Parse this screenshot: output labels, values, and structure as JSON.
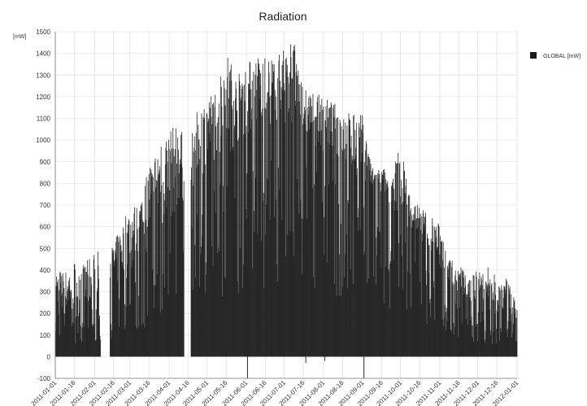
{
  "chart_data": {
    "type": "bar",
    "title": "Radiation",
    "ylabel": "[mW]",
    "xlabel": "",
    "ylim": [
      -100,
      1500
    ],
    "yticks": [
      -100,
      0,
      100,
      200,
      300,
      400,
      500,
      600,
      700,
      800,
      900,
      1000,
      1100,
      1200,
      1300,
      1400,
      1500
    ],
    "xlim": [
      "2011-01-01",
      "2012-01-01"
    ],
    "xtick_labels": [
      "2011-01-01",
      "2011-01-16",
      "2011-02-01",
      "2011-02-16",
      "2011-03-01",
      "2011-03-16",
      "2011-04-01",
      "2011-04-16",
      "2011-05-01",
      "2011-05-16",
      "2011-06-01",
      "2011-06-16",
      "2011-07-01",
      "2011-07-16",
      "2011-08-01",
      "2011-08-16",
      "2011-09-01",
      "2011-09-16",
      "2011-10-01",
      "2011-10-16",
      "2011-11-01",
      "2011-11-16",
      "2011-12-01",
      "2011-12-16",
      "2012-01-01"
    ],
    "grid": true,
    "legend_position": "top-right",
    "colors": {
      "series": "#1a1a1a",
      "grid": "#d9d9d9",
      "axis": "#777777"
    },
    "series": [
      {
        "name": "GLOBAL [mW]",
        "daily_peak": [
          {
            "x": "2011-01-01",
            "y": 420
          },
          {
            "x": "2011-01-08",
            "y": 390
          },
          {
            "x": "2011-01-16",
            "y": 450
          },
          {
            "x": "2011-01-24",
            "y": 430
          },
          {
            "x": "2011-02-01",
            "y": 490
          },
          {
            "x": "2011-02-08",
            "y": 480
          },
          {
            "x": "2011-02-16",
            "y": 520
          },
          {
            "x": "2011-02-24",
            "y": 640
          },
          {
            "x": "2011-03-01",
            "y": 700
          },
          {
            "x": "2011-03-08",
            "y": 720
          },
          {
            "x": "2011-03-16",
            "y": 900
          },
          {
            "x": "2011-03-24",
            "y": 1000
          },
          {
            "x": "2011-04-01",
            "y": 1050
          },
          {
            "x": "2011-04-08",
            "y": 1080
          },
          {
            "x": "2011-04-16",
            "y": 980
          },
          {
            "x": "2011-04-24",
            "y": 1150
          },
          {
            "x": "2011-05-01",
            "y": 1200
          },
          {
            "x": "2011-05-08",
            "y": 1250
          },
          {
            "x": "2011-05-16",
            "y": 1420
          },
          {
            "x": "2011-05-24",
            "y": 1300
          },
          {
            "x": "2011-06-01",
            "y": 1350
          },
          {
            "x": "2011-06-08",
            "y": 1400
          },
          {
            "x": "2011-06-16",
            "y": 1380
          },
          {
            "x": "2011-06-24",
            "y": 1400
          },
          {
            "x": "2011-07-01",
            "y": 1420
          },
          {
            "x": "2011-07-08",
            "y": 1490
          },
          {
            "x": "2011-07-16",
            "y": 1250
          },
          {
            "x": "2011-07-24",
            "y": 1220
          },
          {
            "x": "2011-08-01",
            "y": 1200
          },
          {
            "x": "2011-08-08",
            "y": 1180
          },
          {
            "x": "2011-08-16",
            "y": 1150
          },
          {
            "x": "2011-08-24",
            "y": 1120
          },
          {
            "x": "2011-09-01",
            "y": 1120
          },
          {
            "x": "2011-09-08",
            "y": 870
          },
          {
            "x": "2011-09-16",
            "y": 880
          },
          {
            "x": "2011-09-24",
            "y": 830
          },
          {
            "x": "2011-10-01",
            "y": 1000
          },
          {
            "x": "2011-10-08",
            "y": 760
          },
          {
            "x": "2011-10-16",
            "y": 700
          },
          {
            "x": "2011-10-24",
            "y": 660
          },
          {
            "x": "2011-11-01",
            "y": 610
          },
          {
            "x": "2011-11-08",
            "y": 450
          },
          {
            "x": "2011-11-16",
            "y": 440
          },
          {
            "x": "2011-11-24",
            "y": 350
          },
          {
            "x": "2011-12-01",
            "y": 460
          },
          {
            "x": "2011-12-08",
            "y": 420
          },
          {
            "x": "2011-12-16",
            "y": 390
          },
          {
            "x": "2011-12-24",
            "y": 360
          },
          {
            "x": "2012-01-01",
            "y": 270
          }
        ],
        "daily_base": [
          {
            "x": "2011-01-01",
            "y": 160
          },
          {
            "x": "2011-02-01",
            "y": 200
          },
          {
            "x": "2011-03-01",
            "y": 360
          },
          {
            "x": "2011-04-01",
            "y": 600
          },
          {
            "x": "2011-05-01",
            "y": 850
          },
          {
            "x": "2011-06-01",
            "y": 1000
          },
          {
            "x": "2011-07-01",
            "y": 1050
          },
          {
            "x": "2011-08-01",
            "y": 950
          },
          {
            "x": "2011-09-01",
            "y": 800
          },
          {
            "x": "2011-10-01",
            "y": 640
          },
          {
            "x": "2011-11-01",
            "y": 380
          },
          {
            "x": "2011-12-01",
            "y": 200
          },
          {
            "x": "2012-01-01",
            "y": 130
          }
        ],
        "gaps": [
          [
            "2011-02-06",
            "2011-02-13"
          ],
          [
            "2011-04-13",
            "2011-04-18"
          ]
        ],
        "min": -100
      }
    ]
  }
}
